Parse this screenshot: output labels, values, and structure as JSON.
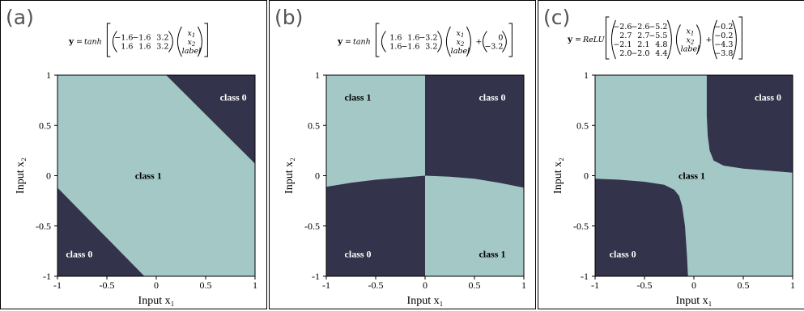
{
  "colors": {
    "class_0": "#33334b",
    "class_1": "#a3c8c6",
    "axis": "#000000",
    "letter": "#555555"
  },
  "chart_data": [
    {
      "type": "heatmap",
      "panel_letter": "(a)",
      "equation": {
        "lhs": "y",
        "func": "tanh",
        "weights": [
          [
            "−1.6",
            "−1.6",
            "3.2"
          ],
          [
            "1.6",
            "1.6",
            "3.2"
          ]
        ],
        "inputs": [
          "x1",
          "x2",
          "label"
        ],
        "bias": []
      },
      "xlabel": "Input x₁",
      "ylabel": "Input x₂",
      "xlim": [
        -1,
        1
      ],
      "ylim": [
        -1,
        1
      ],
      "xticks": [
        "-1",
        "-0.5",
        "0",
        "0.5",
        "1"
      ],
      "yticks": [
        "-1",
        "-0.5",
        "0",
        "0.5",
        "1"
      ],
      "class1_region": [
        [
          -1,
          -0.12
        ],
        [
          -1,
          1
        ],
        [
          0.1,
          1
        ],
        [
          1,
          0.12
        ],
        [
          1,
          -1
        ],
        [
          -0.12,
          -1
        ]
      ],
      "region_labels": [
        {
          "text": "class 0",
          "x": 0.78,
          "y": 0.78
        },
        {
          "text": "class 1",
          "x": -0.08,
          "y": 0.0
        },
        {
          "text": "class 0",
          "x": -0.78,
          "y": -0.78
        }
      ]
    },
    {
      "type": "heatmap",
      "panel_letter": "(b)",
      "equation": {
        "lhs": "y",
        "func": "tanh",
        "weights": [
          [
            "1.6",
            "1.6",
            "−3.2"
          ],
          [
            "1.6",
            "−1.6",
            "3.2"
          ]
        ],
        "inputs": [
          "x1",
          "x2",
          "label"
        ],
        "bias": [
          "0",
          "−3.2"
        ]
      },
      "xlabel": "Input x₁",
      "ylabel": "Input x₂",
      "xlim": [
        -1,
        1
      ],
      "ylim": [
        -1,
        1
      ],
      "xticks": [
        "-1",
        "-0.5",
        "0",
        "0.5",
        "1"
      ],
      "yticks": [
        "-1",
        "-0.5",
        "0",
        "0.5",
        "1"
      ],
      "class1_quadrants": [
        [
          -1,
          0,
          0,
          1
        ],
        [
          0,
          1,
          -1,
          0
        ]
      ],
      "boundary_curve": [
        [
          -1,
          -0.11
        ],
        [
          -0.75,
          -0.07
        ],
        [
          -0.5,
          -0.04
        ],
        [
          -0.25,
          -0.02
        ],
        [
          0,
          0
        ],
        [
          0.25,
          -0.01
        ],
        [
          0.5,
          -0.03
        ],
        [
          0.75,
          -0.07
        ],
        [
          1,
          -0.12
        ]
      ],
      "region_labels": [
        {
          "text": "class 1",
          "x": -0.68,
          "y": 0.78
        },
        {
          "text": "class 0",
          "x": 0.68,
          "y": 0.78
        },
        {
          "text": "class 0",
          "x": -0.68,
          "y": -0.78
        },
        {
          "text": "class 1",
          "x": 0.68,
          "y": -0.78
        }
      ]
    },
    {
      "type": "heatmap",
      "panel_letter": "(c)",
      "equation": {
        "lhs": "y",
        "func": "ReLU",
        "weights": [
          [
            "−2.6",
            "−2.6",
            "−5.2"
          ],
          [
            "2.7",
            "2.7",
            "−5.5"
          ],
          [
            "−2.1",
            "2.1",
            "4.8"
          ],
          [
            "2.0",
            "−2.0",
            "4.4"
          ]
        ],
        "inputs": [
          "x1",
          "x2",
          "label"
        ],
        "bias": [
          "−0.2",
          "−0.2",
          "−4.3",
          "−3.8"
        ]
      },
      "xlabel": "Input x₁",
      "ylabel": "Input x₂",
      "xlim": [
        -1,
        1
      ],
      "ylim": [
        -1,
        1
      ],
      "xticks": [
        "-1",
        "-0.5",
        "0",
        "0.5",
        "1"
      ],
      "yticks": [
        "-1",
        "-0.5",
        "0",
        "0.5",
        "1"
      ],
      "upper_boundary": [
        [
          0.13,
          1
        ],
        [
          0.13,
          0.6
        ],
        [
          0.14,
          0.4
        ],
        [
          0.16,
          0.25
        ],
        [
          0.2,
          0.15
        ],
        [
          0.3,
          0.1
        ],
        [
          0.5,
          0.07
        ],
        [
          0.75,
          0.05
        ],
        [
          1,
          0.03
        ]
      ],
      "lower_boundary": [
        [
          -1,
          -0.03
        ],
        [
          -0.75,
          -0.04
        ],
        [
          -0.5,
          -0.06
        ],
        [
          -0.3,
          -0.09
        ],
        [
          -0.2,
          -0.14
        ],
        [
          -0.15,
          -0.2
        ],
        [
          -0.12,
          -0.3
        ],
        [
          -0.09,
          -0.5
        ],
        [
          -0.07,
          -0.8
        ],
        [
          -0.06,
          -1
        ]
      ],
      "region_labels": [
        {
          "text": "class 0",
          "x": 0.75,
          "y": 0.78
        },
        {
          "text": "class 1",
          "x": -0.02,
          "y": 0.0
        },
        {
          "text": "class 0",
          "x": -0.72,
          "y": -0.78
        }
      ]
    }
  ]
}
